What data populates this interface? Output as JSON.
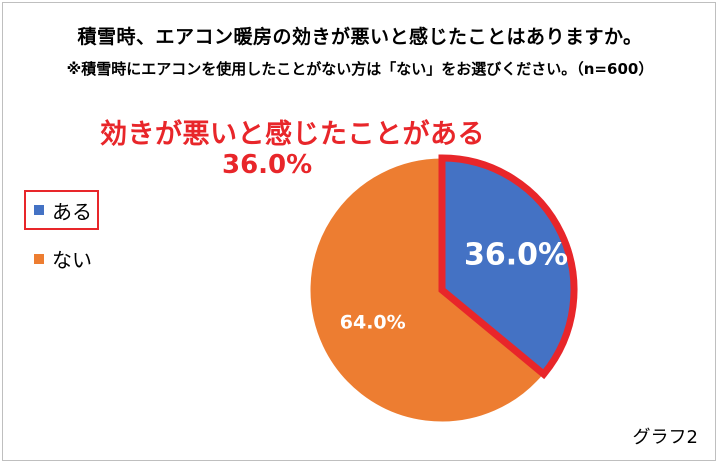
{
  "title": "積雪時、エアコン暖房の効きが悪いと感じたことはありますか。",
  "subtitle": "※積雪時にエアコンを使用したことがない方は「ない」をお選びください。（n=600）",
  "callout": {
    "line1": "効きが悪いと感じたことがある",
    "line2": "36.0%",
    "color": "#e8262a"
  },
  "credit": "グラフ2",
  "chart_data": {
    "type": "pie",
    "title": "積雪時、エアコン暖房の効きが悪いと感じたことはありますか。",
    "categories": [
      "ある",
      "ない"
    ],
    "values": [
      36.0,
      64.0
    ],
    "labels": [
      "36.0%",
      "64.0%"
    ],
    "colors": [
      "#4472c4",
      "#ed7d31"
    ],
    "highlighted": "ある",
    "legend_position": "left"
  }
}
